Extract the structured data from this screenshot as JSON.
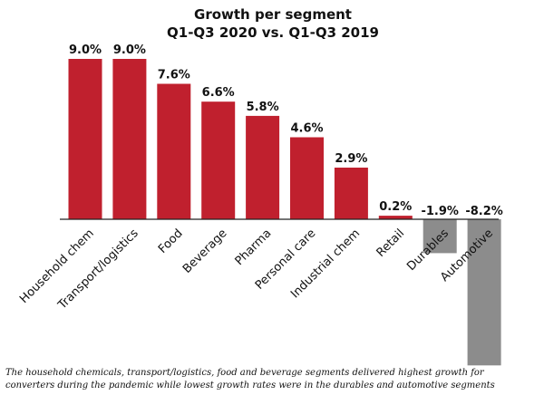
{
  "chart_data": {
    "type": "bar",
    "title": "Growth per segment",
    "subtitle": "Q1-Q3 2020 vs. Q1-Q3 2019",
    "categories": [
      "Household chem",
      "Transport/logistics",
      "Food",
      "Beverage",
      "Pharma",
      "Personal care",
      "Industrial chem",
      "Retail",
      "Durables",
      "Automotive"
    ],
    "values": [
      9.0,
      9.0,
      7.6,
      6.6,
      5.8,
      4.6,
      2.9,
      0.2,
      -1.9,
      -8.2
    ],
    "value_labels": [
      "9.0%",
      "9.0%",
      "7.6%",
      "6.6%",
      "5.8%",
      "4.6%",
      "2.9%",
      "0.2%",
      "-1.9%",
      "-8.2%"
    ],
    "unit": "%",
    "xlabel": "",
    "ylabel": "",
    "grid": false,
    "legend": "none",
    "colors": {
      "positive": "#c0202e",
      "negative": "#8c8c8c",
      "baseline": "#222222"
    }
  },
  "caption_lines": [
    "The household chemicals, transport/logistics, food and beverage segments delivered highest growth for",
    "converters during the pandemic while lowest growth rates were in the durables and automotive segments"
  ]
}
